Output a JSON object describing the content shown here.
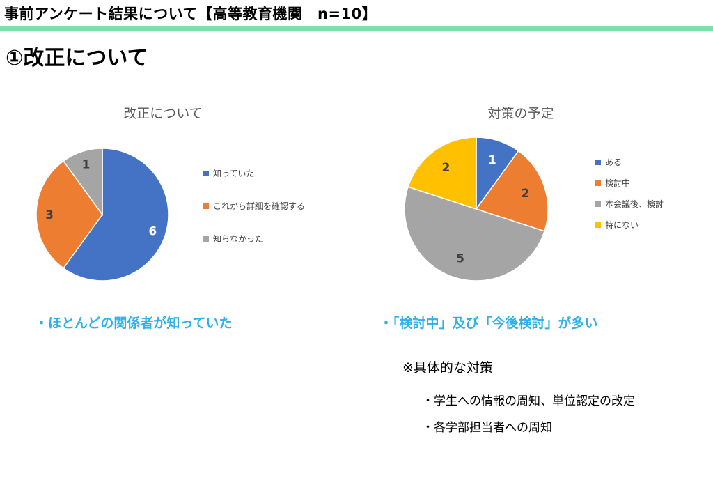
{
  "header": {
    "title": "事前アンケート結果について【高等教育機関　n=10】"
  },
  "section": {
    "title": "①改正について"
  },
  "charts": {
    "left": {
      "title": "改正について"
    },
    "right": {
      "title": "対策の予定"
    }
  },
  "chart_data": [
    {
      "type": "pie",
      "title": "改正について",
      "categories": [
        "知っていた",
        "これから詳細を確認する",
        "知らなかった"
      ],
      "values": [
        6,
        3,
        1
      ],
      "colors": [
        "#4472c4",
        "#ed7d31",
        "#a5a5a5"
      ],
      "legend": "right",
      "data_labels": [
        "6",
        "3",
        "1"
      ]
    },
    {
      "type": "pie",
      "title": "対策の予定",
      "categories": [
        "ある",
        "検討中",
        "本会議後、検討",
        "特にない"
      ],
      "values": [
        1,
        2,
        5,
        2
      ],
      "colors": [
        "#4472c4",
        "#ed7d31",
        "#a5a5a5",
        "#ffc000"
      ],
      "legend": "right",
      "data_labels": [
        "1",
        "2",
        "5",
        "2"
      ]
    }
  ],
  "notes": {
    "left": "・ほとんどの関係者が知っていた",
    "right": "・「検討中」及び「今後検討」が多い"
  },
  "details": {
    "heading": "※具体的な対策",
    "items": [
      "・学生への情報の周知、単位認定の改定",
      "・各学部担当者への周知"
    ]
  }
}
